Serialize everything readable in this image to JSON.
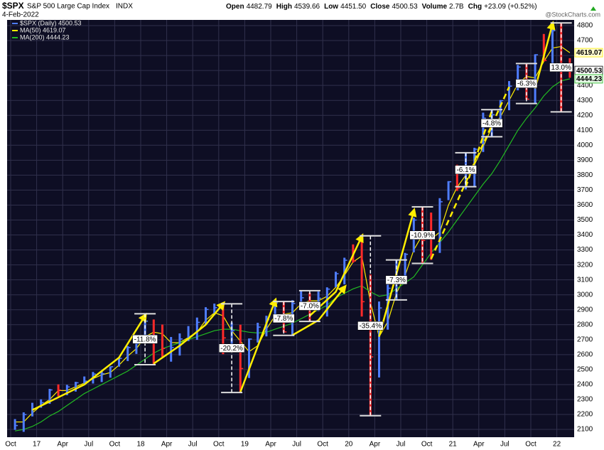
{
  "chart_data": {
    "type": "ohlc",
    "title": "$SPX",
    "subtitle": "S&P 500 Large Cap Index",
    "exchange": "INDX",
    "date": "4-Feb-2022",
    "quote": [
      {
        "label": "Open",
        "value": "4482.79"
      },
      {
        "label": "High",
        "value": "4539.66"
      },
      {
        "label": "Low",
        "value": "4451.50"
      },
      {
        "label": "Close",
        "value": "4500.53"
      },
      {
        "label": "Volume",
        "value": "2.7B"
      },
      {
        "label": "Chg",
        "value": "+23.09 (+0.52%)"
      }
    ],
    "watermark": "@StockCharts.com",
    "x": [
      "2016-10",
      "2016-11",
      "2016-12",
      "2017-01",
      "2017-02",
      "2017-03",
      "2017-04",
      "2017-05",
      "2017-06",
      "2017-07",
      "2017-08",
      "2017-09",
      "2017-10",
      "2017-11",
      "2017-12",
      "2018-01",
      "2018-02",
      "2018-03",
      "2018-04",
      "2018-05",
      "2018-06",
      "2018-07",
      "2018-08",
      "2018-09",
      "2018-10",
      "2018-11",
      "2018-12",
      "2019-01",
      "2019-02",
      "2019-03",
      "2019-04",
      "2019-05",
      "2019-06",
      "2019-07",
      "2019-08",
      "2019-09",
      "2019-10",
      "2019-11",
      "2019-12",
      "2020-01",
      "2020-02",
      "2020-03",
      "2020-04",
      "2020-05",
      "2020-06",
      "2020-07",
      "2020-08",
      "2020-09",
      "2020-10",
      "2020-11",
      "2020-12",
      "2021-01",
      "2021-02",
      "2021-03",
      "2021-04",
      "2021-05",
      "2021-06",
      "2021-07",
      "2021-08",
      "2021-09",
      "2021-10",
      "2021-11",
      "2021-12",
      "2022-01",
      "2022-02"
    ],
    "price": {
      "name": "$SPX (Daily) 4500.53",
      "up_color": "#4f7dff",
      "down_color": "#ff2a2a",
      "tag": "4500.53",
      "high": [
        2169,
        2214,
        2278,
        2301,
        2371,
        2401,
        2398,
        2418,
        2454,
        2484,
        2491,
        2520,
        2582,
        2657,
        2694,
        2873,
        2835,
        2801,
        2718,
        2742,
        2791,
        2848,
        2917,
        2941,
        2940,
        2815,
        2800,
        2708,
        2813,
        2860,
        2949,
        2955,
        2964,
        3028,
        3014,
        3022,
        3050,
        3154,
        3248,
        3337,
        3394,
        3136,
        2955,
        3068,
        3233,
        3280,
        3515,
        3588,
        3550,
        3646,
        3760,
        3870,
        3950,
        3983,
        4218,
        4238,
        4302,
        4429,
        4537,
        4546,
        4608,
        4744,
        4808,
        4818,
        4582
      ],
      "low": [
        2097,
        2084,
        2187,
        2245,
        2271,
        2322,
        2329,
        2353,
        2405,
        2407,
        2417,
        2446,
        2520,
        2557,
        2605,
        2683,
        2533,
        2585,
        2553,
        2594,
        2691,
        2699,
        2803,
        2864,
        2603,
        2631,
        2347,
        2444,
        2681,
        2722,
        2848,
        2750,
        2729,
        2952,
        2822,
        2892,
        2855,
        3051,
        3070,
        3215,
        2855,
        2192,
        2447,
        2767,
        2966,
        3101,
        3284,
        3210,
        3234,
        3280,
        3633,
        3695,
        3705,
        3723,
        3955,
        4057,
        4165,
        4234,
        4367,
        4306,
        4279,
        4560,
        4496,
        4223,
        4451
      ],
      "close": [
        2126,
        2199,
        2239,
        2279,
        2364,
        2363,
        2384,
        2412,
        2423,
        2470,
        2472,
        2519,
        2575,
        2648,
        2674,
        2824,
        2714,
        2641,
        2648,
        2705,
        2718,
        2816,
        2902,
        2914,
        2712,
        2760,
        2507,
        2704,
        2784,
        2834,
        2946,
        2752,
        2942,
        2980,
        2926,
        2977,
        3038,
        3141,
        3231,
        3226,
        2954,
        2585,
        2912,
        3044,
        3100,
        3271,
        3500,
        3363,
        3270,
        3622,
        3756,
        3714,
        3811,
        3973,
        4181,
        4204,
        4298,
        4395,
        4523,
        4308,
        4605,
        4567,
        4766,
        4516,
        4500
      ]
    },
    "series": [
      {
        "name": "MA(50) 4619.07",
        "color": "#ffee00",
        "tag": "4619.07",
        "values": [
          2150,
          2150,
          2210,
          2260,
          2300,
          2360,
          2360,
          2385,
          2410,
          2440,
          2465,
          2480,
          2530,
          2590,
          2640,
          2720,
          2750,
          2740,
          2680,
          2680,
          2715,
          2750,
          2830,
          2880,
          2860,
          2760,
          2690,
          2620,
          2660,
          2770,
          2860,
          2870,
          2880,
          2940,
          2960,
          2960,
          2990,
          3050,
          3130,
          3220,
          3260,
          2950,
          2720,
          2820,
          3010,
          3130,
          3300,
          3400,
          3370,
          3420,
          3600,
          3720,
          3800,
          3870,
          3990,
          4120,
          4190,
          4300,
          4410,
          4460,
          4450,
          4560,
          4650,
          4660,
          4619
        ]
      },
      {
        "name": "MA(200) 4444.23",
        "color": "#22bb22",
        "tag": "4444.23",
        "values": [
          2090,
          2100,
          2120,
          2150,
          2190,
          2220,
          2260,
          2300,
          2340,
          2370,
          2400,
          2430,
          2460,
          2490,
          2530,
          2570,
          2610,
          2640,
          2660,
          2680,
          2700,
          2720,
          2740,
          2760,
          2770,
          2770,
          2760,
          2750,
          2745,
          2750,
          2770,
          2790,
          2810,
          2840,
          2870,
          2900,
          2930,
          2980,
          3010,
          3040,
          3060,
          3020,
          2990,
          3000,
          3040,
          3080,
          3120,
          3200,
          3280,
          3350,
          3420,
          3500,
          3580,
          3660,
          3740,
          3810,
          3900,
          4000,
          4100,
          4180,
          4250,
          4330,
          4390,
          4430,
          4444
        ]
      }
    ],
    "xlim": [
      "2016-10",
      "2022-03"
    ],
    "xticks": [
      {
        "value": "2016-10",
        "label": "Oct"
      },
      {
        "value": "2017-01",
        "label": "17"
      },
      {
        "value": "2017-04",
        "label": "Apr"
      },
      {
        "value": "2017-07",
        "label": "Jul"
      },
      {
        "value": "2017-10",
        "label": "Oct"
      },
      {
        "value": "2018-01",
        "label": "18"
      },
      {
        "value": "2018-04",
        "label": "Apr"
      },
      {
        "value": "2018-07",
        "label": "Jul"
      },
      {
        "value": "2018-10",
        "label": "Oct"
      },
      {
        "value": "2019-01",
        "label": "19"
      },
      {
        "value": "2019-04",
        "label": "Apr"
      },
      {
        "value": "2019-07",
        "label": "Jul"
      },
      {
        "value": "2019-10",
        "label": "Oct"
      },
      {
        "value": "2020-01",
        "label": "20"
      },
      {
        "value": "2020-04",
        "label": "Apr"
      },
      {
        "value": "2020-07",
        "label": "Jul"
      },
      {
        "value": "2020-10",
        "label": "Oct"
      },
      {
        "value": "2021-01",
        "label": "21"
      },
      {
        "value": "2021-04",
        "label": "Apr"
      },
      {
        "value": "2021-07",
        "label": "Jul"
      },
      {
        "value": "2021-10",
        "label": "Oct"
      },
      {
        "value": "2022-01",
        "label": "22"
      }
    ],
    "ylim": [
      2048,
      4838
    ],
    "yticks": [
      2100,
      2200,
      2300,
      2400,
      2500,
      2600,
      2700,
      2800,
      2900,
      3000,
      3100,
      3200,
      3300,
      3400,
      3500,
      3600,
      3700,
      3800,
      3900,
      4000,
      4100,
      4200,
      4300,
      4400,
      4500,
      4600,
      4700,
      4800
    ],
    "grid": true,
    "annotations": [
      {
        "text": "-11.8%",
        "x": "2018-01",
        "high": 2873,
        "low": 2533
      },
      {
        "text": "-20.2%",
        "x": "2018-11",
        "high": 2940,
        "low": 2347
      },
      {
        "text": "-7.8%",
        "x": "2019-05",
        "high": 2955,
        "low": 2729
      },
      {
        "text": "-7.0%",
        "x": "2019-08",
        "high": 3028,
        "low": 2822
      },
      {
        "text": "-35.4%",
        "x": "2020-03",
        "high": 3394,
        "low": 2192
      },
      {
        "text": "-7.3%",
        "x": "2020-06",
        "high": 3233,
        "low": 2966
      },
      {
        "text": "-10.9%",
        "x": "2020-09",
        "high": 3588,
        "low": 3210
      },
      {
        "text": "-6.1%",
        "x": "2021-02",
        "high": 3950,
        "low": 3723
      },
      {
        "text": "-4.8%",
        "x": "2021-05",
        "high": 4238,
        "low": 4057
      },
      {
        "text": "-6.3%",
        "x": "2021-09",
        "high": 4546,
        "low": 4279
      },
      {
        "text": "13.0%",
        "x": "2022-01",
        "high": 4818,
        "low": 4223
      }
    ],
    "trendlines": [
      {
        "x": [
          "2016-12",
          "2017-06",
          "2017-10",
          "2018-01"
        ],
        "y": [
          2230,
          2400,
          2580,
          2860
        ],
        "dashed": false
      },
      {
        "x": [
          "2018-02",
          "2018-05",
          "2018-08",
          "2018-10"
        ],
        "y": [
          2540,
          2660,
          2800,
          2940
        ],
        "dashed": false
      },
      {
        "x": [
          "2018-12",
          "2019-04"
        ],
        "y": [
          2350,
          2960
        ],
        "dashed": false
      },
      {
        "x": [
          "2019-06",
          "2019-09",
          "2019-12"
        ],
        "y": [
          2730,
          2830,
          3050
        ],
        "dashed": false
      },
      {
        "x": [
          "2019-08",
          "2019-11",
          "2020-02"
        ],
        "y": [
          2860,
          3020,
          3390
        ],
        "dashed": false
      },
      {
        "x": [
          "2020-04",
          "2020-08"
        ],
        "y": [
          2720,
          3560
        ],
        "dashed": false
      },
      {
        "x": [
          "2020-10",
          "2021-07"
        ],
        "y": [
          3240,
          4390
        ],
        "dashed": true
      },
      {
        "x": [
          "2021-02",
          "2021-05"
        ],
        "y": [
          3720,
          4230
        ],
        "dashed": true
      },
      {
        "x": [
          "2021-10",
          "2021-12"
        ],
        "y": [
          4380,
          4810
        ],
        "dashed": false
      }
    ]
  }
}
